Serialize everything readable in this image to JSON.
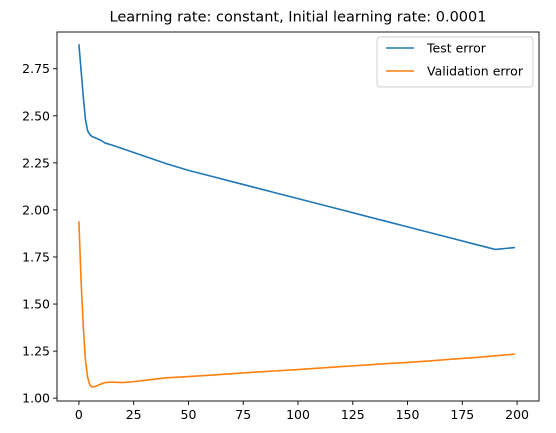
{
  "chart_data": {
    "type": "line",
    "title": "Learning rate: constant, Initial learning rate: 0.0001",
    "xlabel": "",
    "ylabel": "",
    "xlim": [
      -10,
      210
    ],
    "ylim": [
      0.985,
      2.945
    ],
    "xticks": [
      0,
      25,
      50,
      75,
      100,
      125,
      150,
      175,
      200
    ],
    "yticks": [
      1.0,
      1.25,
      1.5,
      1.75,
      2.0,
      2.25,
      2.5,
      2.75
    ],
    "ytick_labels": [
      "1.00",
      "1.25",
      "1.50",
      "1.75",
      "2.00",
      "2.25",
      "2.50",
      "2.75"
    ],
    "grid": false,
    "legend_position": "upper-right",
    "series": [
      {
        "name": "Test error",
        "color": "#1f77b4",
        "x": [
          0,
          1,
          2,
          3,
          4,
          5,
          6,
          8,
          10,
          12,
          15,
          20,
          25,
          30,
          40,
          50,
          60,
          70,
          80,
          90,
          100,
          110,
          120,
          130,
          140,
          150,
          160,
          170,
          180,
          190,
          199
        ],
        "y": [
          2.88,
          2.74,
          2.6,
          2.48,
          2.42,
          2.4,
          2.39,
          2.38,
          2.37,
          2.355,
          2.345,
          2.325,
          2.305,
          2.285,
          2.245,
          2.21,
          2.18,
          2.15,
          2.12,
          2.09,
          2.06,
          2.03,
          2.0,
          1.97,
          1.94,
          1.91,
          1.88,
          1.85,
          1.82,
          1.79,
          1.8
        ]
      },
      {
        "name": "Validation error",
        "color": "#ff7f0e",
        "x": [
          0,
          1,
          2,
          3,
          4,
          5,
          6,
          7,
          8,
          9,
          10,
          12,
          14,
          16,
          20,
          25,
          30,
          40,
          50,
          60,
          70,
          80,
          90,
          100,
          110,
          120,
          130,
          140,
          150,
          160,
          170,
          180,
          190,
          199
        ],
        "y": [
          1.94,
          1.62,
          1.38,
          1.2,
          1.11,
          1.07,
          1.06,
          1.06,
          1.065,
          1.07,
          1.075,
          1.083,
          1.085,
          1.085,
          1.083,
          1.088,
          1.095,
          1.108,
          1.115,
          1.122,
          1.13,
          1.138,
          1.145,
          1.152,
          1.16,
          1.168,
          1.175,
          1.183,
          1.19,
          1.198,
          1.207,
          1.215,
          1.225,
          1.234
        ]
      }
    ]
  }
}
